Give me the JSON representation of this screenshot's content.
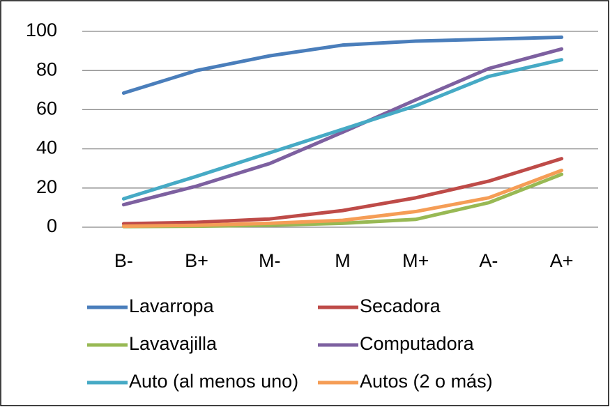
{
  "chart_data": {
    "type": "line",
    "categories": [
      "B-",
      "B+",
      "M-",
      "M",
      "M+",
      "A-",
      "A+"
    ],
    "series": [
      {
        "name": "Lavarropa",
        "color": "#4a7ebb",
        "values": [
          68.5,
          80,
          87.5,
          93,
          95,
          96,
          97
        ]
      },
      {
        "name": "Secadora",
        "color": "#be4b48",
        "values": [
          1.8,
          2.5,
          4.2,
          8.5,
          15,
          23.5,
          35
        ]
      },
      {
        "name": "Lavavajilla",
        "color": "#98b954",
        "values": [
          0.3,
          0.5,
          1,
          2,
          4,
          12.5,
          27
        ]
      },
      {
        "name": "Computadora",
        "color": "#7d60a0",
        "values": [
          11.5,
          21,
          32.5,
          48.5,
          65,
          81,
          91
        ]
      },
      {
        "name": "Auto (al menos uno)",
        "color": "#46aac5",
        "values": [
          14.5,
          26,
          38,
          50,
          62,
          77,
          85.5
        ]
      },
      {
        "name": "Autos (2 o más)",
        "color": "#f59d56",
        "values": [
          0.5,
          1,
          2,
          3.5,
          8,
          15,
          29
        ]
      }
    ],
    "ylim": [
      0,
      100
    ],
    "yticks": [
      0,
      20,
      40,
      60,
      80,
      100
    ],
    "grid": true,
    "legend": "bottom"
  }
}
